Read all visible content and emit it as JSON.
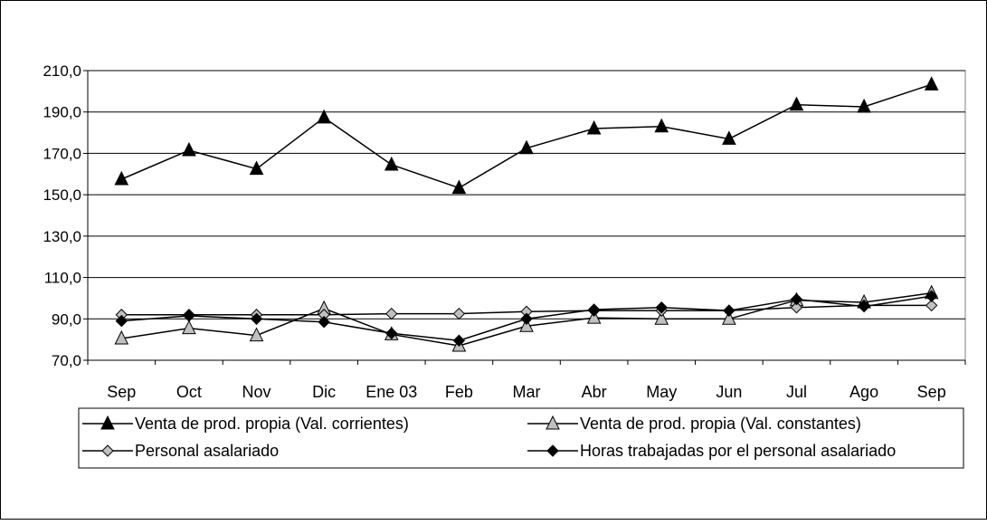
{
  "chart_data": {
    "type": "line",
    "title": "",
    "xlabel": "",
    "ylabel": "",
    "categories": [
      "Sep",
      "Oct",
      "Nov",
      "Dic",
      "Ene 03",
      "Feb",
      "Mar",
      "Abr",
      "May",
      "Jun",
      "Jul",
      "Ago",
      "Sep"
    ],
    "ylim": [
      70,
      210
    ],
    "yticks": [
      70,
      90,
      110,
      130,
      150,
      170,
      190,
      210
    ],
    "ytick_labels": [
      "70,0",
      "90,0",
      "110,0",
      "130,0",
      "150,0",
      "170,0",
      "190,0",
      "210,0"
    ],
    "grid": true,
    "legend_position": "bottom",
    "series": [
      {
        "name": "Venta de prod. propia (Val. corrientes)",
        "marker": "triangle",
        "marker_color": "#000000",
        "line_color": "#000000",
        "values": [
          157.5,
          171.5,
          162.5,
          187.3,
          164.5,
          153.3,
          172.5,
          182.0,
          183.0,
          177.0,
          193.5,
          192.5,
          203.3
        ]
      },
      {
        "name": "Venta de prod. propia (Val. constantes)",
        "marker": "triangle",
        "marker_color": "#c0c0c0",
        "line_color": "#000000",
        "values": [
          80.5,
          85.5,
          82.0,
          95.0,
          82.5,
          77.0,
          86.5,
          90.5,
          90.0,
          90.0,
          99.0,
          98.0,
          102.5
        ]
      },
      {
        "name": "Personal asalariado",
        "marker": "diamond",
        "marker_color": "#c0c0c0",
        "line_color": "#000000",
        "values": [
          92.0,
          92.0,
          92.0,
          92.0,
          92.5,
          92.5,
          93.5,
          94.0,
          94.0,
          94.0,
          95.5,
          96.5,
          96.5
        ]
      },
      {
        "name": "Horas trabajadas por el personal asalariado",
        "marker": "diamond",
        "marker_color": "#000000",
        "line_color": "#000000",
        "values": [
          89.0,
          91.5,
          90.0,
          88.5,
          83.0,
          79.5,
          90.0,
          94.5,
          95.5,
          94.0,
          99.5,
          96.0,
          101.0
        ]
      }
    ]
  }
}
